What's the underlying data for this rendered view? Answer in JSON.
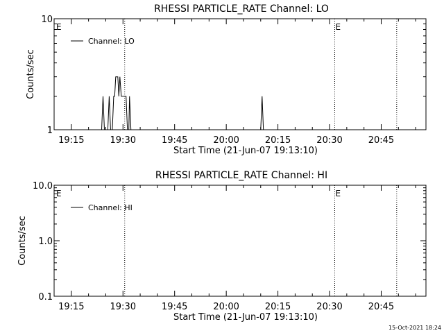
{
  "footer": {
    "timestamp": "15-Oct-2021 18:24"
  },
  "chart_data": [
    {
      "type": "line",
      "title": "RHESSI PARTICLE_RATE Channel: LO",
      "xlabel": "Start Time (21-Jun-07 19:13:10)",
      "ylabel": "Counts/sec",
      "y_scale": "log",
      "ylim": [
        1,
        10
      ],
      "y_ticks": [
        1,
        10
      ],
      "y_tick_labels": [
        "1",
        "10"
      ],
      "x_ticks": [
        "19:15",
        "19:30",
        "19:45",
        "20:00",
        "20:15",
        "20:30",
        "20:45"
      ],
      "x_tick_minutes": [
        1155,
        1170,
        1185,
        1200,
        1215,
        1230,
        1245
      ],
      "xlim_minutes": [
        1150,
        1258
      ],
      "markers": [
        {
          "minute": 1150.4,
          "label": "E"
        },
        {
          "minute": 1231.5,
          "label": "E"
        },
        {
          "minute": 1249.5,
          "label": ""
        }
      ],
      "dotted_vertical_lines_minutes": [
        1170.5,
        1231.5,
        1249.5
      ],
      "legend": {
        "position": "top-left",
        "entries": [
          "Channel: LO"
        ]
      },
      "series": [
        {
          "name": "Channel: LO",
          "points": [
            [
              1155,
              1
            ],
            [
              1163.8,
              1
            ],
            [
              1164.2,
              2
            ],
            [
              1164.6,
              1
            ],
            [
              1165.6,
              1
            ],
            [
              1166.0,
              2
            ],
            [
              1166.4,
              1
            ],
            [
              1166.9,
              1
            ],
            [
              1167.3,
              2
            ],
            [
              1167.6,
              2
            ],
            [
              1167.9,
              3
            ],
            [
              1168.5,
              3
            ],
            [
              1168.8,
              2
            ],
            [
              1169.1,
              3
            ],
            [
              1169.5,
              2
            ],
            [
              1170.9,
              2
            ],
            [
              1171.3,
              1
            ],
            [
              1171.7,
              1
            ],
            [
              1171.9,
              2
            ],
            [
              1172.3,
              1
            ],
            [
              1210.0,
              1
            ],
            [
              1210.4,
              2
            ],
            [
              1210.8,
              1
            ],
            [
              1252,
              1
            ]
          ]
        }
      ]
    },
    {
      "type": "line",
      "title": "RHESSI PARTICLE_RATE Channel: HI",
      "xlabel": "Start Time (21-Jun-07 19:13:10)",
      "ylabel": "Counts/sec",
      "y_scale": "log",
      "ylim": [
        0.1,
        10
      ],
      "y_ticks": [
        0.1,
        1,
        10
      ],
      "y_tick_labels": [
        "0.1",
        "1.0",
        "10.0"
      ],
      "x_ticks": [
        "19:15",
        "19:30",
        "19:45",
        "20:00",
        "20:15",
        "20:30",
        "20:45"
      ],
      "x_tick_minutes": [
        1155,
        1170,
        1185,
        1200,
        1215,
        1230,
        1245
      ],
      "xlim_minutes": [
        1150,
        1258
      ],
      "markers": [
        {
          "minute": 1150.4,
          "label": "E"
        },
        {
          "minute": 1231.5,
          "label": "E"
        },
        {
          "minute": 1249.5,
          "label": ""
        }
      ],
      "dotted_vertical_lines_minutes": [
        1170.5,
        1231.5,
        1249.5
      ],
      "legend": {
        "position": "top-left",
        "entries": [
          "Channel: HI"
        ]
      },
      "series": [
        {
          "name": "Channel: HI",
          "points": []
        }
      ]
    }
  ]
}
